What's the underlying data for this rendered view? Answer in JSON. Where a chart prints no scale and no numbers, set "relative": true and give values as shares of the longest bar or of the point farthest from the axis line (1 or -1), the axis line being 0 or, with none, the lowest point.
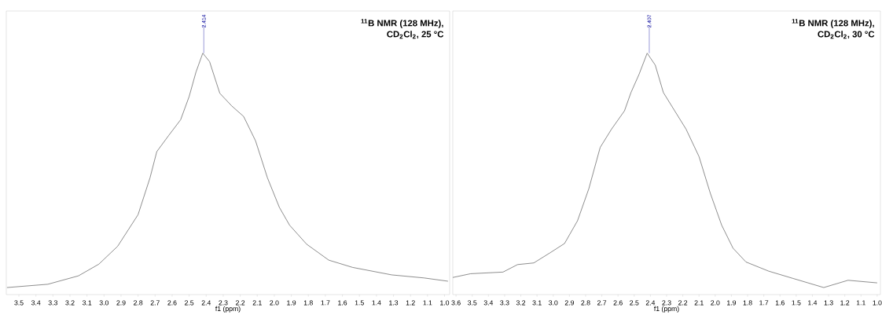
{
  "chart_data": [
    {
      "type": "line",
      "relative": true,
      "title": "$^{11}$B NMR (128 MHz),",
      "subtitle": "CD$_{2}$Cl$_{2}$, 25 °C",
      "xlabel": "f1 (ppm)",
      "tick_labels": "x",
      "xlim": [
        3.574,
        0.97
      ],
      "xticks": [
        3.5,
        3.4,
        3.3,
        3.2,
        3.1,
        {
          "value": 3,
          "label": "3.0"
        },
        2.9,
        2.8,
        2.7,
        2.6,
        2.5,
        2.4,
        2.3,
        2.2,
        2.1,
        {
          "value": 2,
          "label": "2.0"
        },
        1.9,
        1.8,
        1.7,
        1.6,
        1.5,
        1.4,
        1.3,
        1.2,
        1.1,
        {
          "value": 1,
          "label": "1.0"
        }
      ],
      "annotations": [
        {
          "text": "2.414",
          "x": 2.414,
          "y": 1
        }
      ],
      "series": [
        {
          "color": "#555555",
          "x": [
            3.57,
            3.33,
            3.15,
            3.03,
            2.92,
            2.8,
            2.73,
            2.69,
            2.62,
            2.55,
            2.5,
            2.46,
            2.42,
            2.38,
            2.32,
            2.25,
            2.18,
            2.11,
            2.04,
            1.97,
            1.91,
            1.81,
            1.68,
            1.54,
            1.31,
            1.12,
            0.98
          ],
          "values": [
            0,
            0.014,
            0.05,
            0.1,
            0.176,
            0.311,
            0.468,
            0.58,
            0.649,
            0.716,
            0.815,
            0.919,
            1,
            0.964,
            0.829,
            0.775,
            0.73,
            0.626,
            0.468,
            0.342,
            0.266,
            0.185,
            0.117,
            0.086,
            0.054,
            0.041,
            0.027
          ]
        }
      ]
    },
    {
      "type": "line",
      "relative": true,
      "title": "$^{11}$B NMR (128 MHz),",
      "subtitle": "CD$_{2}$Cl$_{2}$, 30 °C",
      "xlabel": "f1 (ppm)",
      "tick_labels": "x",
      "xlim": [
        3.62,
        0.98
      ],
      "xticks": [
        3.6,
        3.5,
        3.4,
        3.3,
        3.2,
        3.1,
        {
          "value": 3,
          "label": "3.0"
        },
        2.9,
        2.8,
        2.7,
        2.6,
        2.5,
        2.4,
        2.3,
        2.2,
        2.1,
        {
          "value": 2,
          "label": "2.0"
        },
        1.9,
        1.8,
        1.7,
        1.6,
        1.5,
        1.4,
        1.3,
        1.2,
        1.1,
        {
          "value": 1,
          "label": "1.0"
        }
      ],
      "annotations": [
        {
          "text": "2.407",
          "x": 2.407,
          "y": 1
        }
      ],
      "series": [
        {
          "color": "#555555",
          "x": [
            3.62,
            3.51,
            3.31,
            3.22,
            3.12,
            3.02,
            2.93,
            2.85,
            2.78,
            2.71,
            2.64,
            2.56,
            2.52,
            2.47,
            2.42,
            2.37,
            2.32,
            2.25,
            2.18,
            2.1,
            2.03,
            1.96,
            1.89,
            1.81,
            1.67,
            1.52,
            1.33,
            1.18,
            1.0
          ],
          "values": [
            0.043,
            0.059,
            0.066,
            0.098,
            0.105,
            0.148,
            0.188,
            0.285,
            0.422,
            0.598,
            0.676,
            0.754,
            0.832,
            0.91,
            1,
            0.949,
            0.832,
            0.754,
            0.676,
            0.559,
            0.402,
            0.266,
            0.168,
            0.109,
            0.07,
            0.039,
            0,
            0.031,
            0.02
          ]
        }
      ]
    }
  ]
}
